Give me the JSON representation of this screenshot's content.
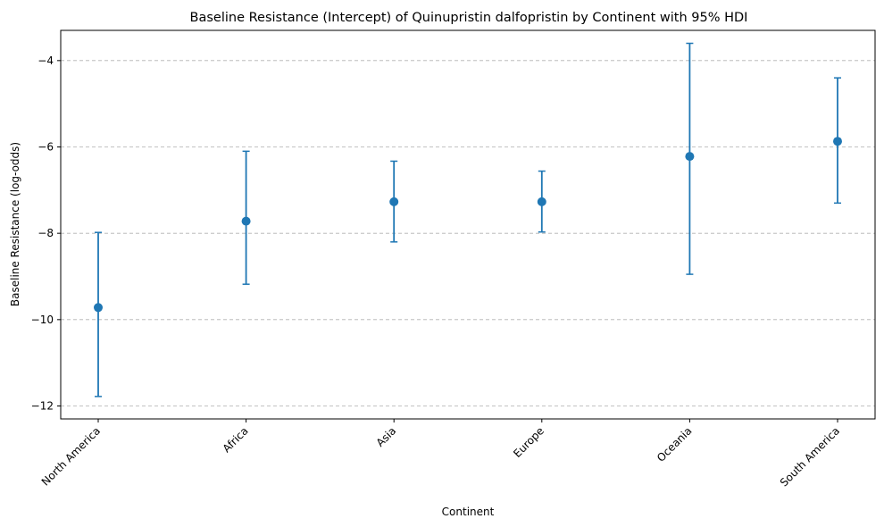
{
  "chart_data": {
    "type": "scatter",
    "title": "Baseline Resistance (Intercept) of Quinupristin dalfopristin by Continent with 95% HDI",
    "xlabel": "Continent",
    "ylabel": "Baseline Resistance (log-odds)",
    "categories": [
      "North America",
      "Africa",
      "Asia",
      "Europe",
      "Oceania",
      "South America"
    ],
    "series": [
      {
        "values": [
          -9.72,
          -7.72,
          -7.27,
          -7.27,
          -6.22,
          -5.87
        ],
        "lower": [
          -11.78,
          -9.18,
          -8.2,
          -7.97,
          -8.95,
          -7.3
        ],
        "upper": [
          -7.98,
          -6.1,
          -6.33,
          -6.56,
          -3.6,
          -4.4
        ]
      }
    ],
    "ylim": [
      -12.3,
      -3.3
    ],
    "yticks": [
      -12,
      -10,
      -8,
      -6,
      -4
    ],
    "ytick_labels": [
      "−12",
      "−10",
      "−8",
      "−6",
      "−4"
    ],
    "grid": "y-dashed",
    "color": "#1f77b4"
  }
}
